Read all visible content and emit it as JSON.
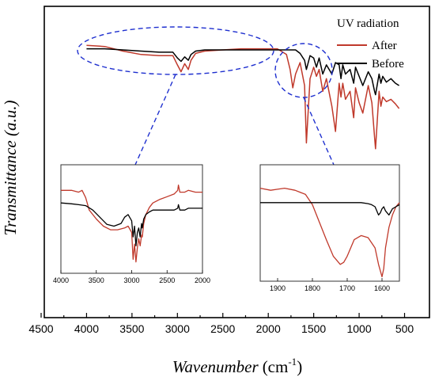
{
  "chart_data": {
    "type": "line",
    "title": "",
    "xlabel": "Wavenumber",
    "xlabel_unit": "(cm",
    "xlabel_unit_sup": "-1",
    "xlabel_unit_close": ")",
    "ylabel": "Transmittance (a.u.)",
    "xlim": [
      4500,
      400
    ],
    "x_ticks": [
      "4500",
      "4000",
      "3500",
      "3000",
      "2500",
      "2000",
      "1500",
      "1000",
      "500"
    ],
    "grid": false,
    "legend": {
      "title": "UV radiation",
      "placement": "top-right",
      "entries": [
        {
          "label": "After",
          "color": "#c0392b"
        },
        {
          "label": "Before",
          "color": "#000000"
        }
      ]
    },
    "series": [
      {
        "name": "After",
        "color": "#c0392b",
        "x": [
          4000,
          3800,
          3600,
          3400,
          3200,
          3050,
          3000,
          2960,
          2920,
          2880,
          2850,
          2800,
          2700,
          2500,
          2300,
          2100,
          1900,
          1800,
          1760,
          1730,
          1700,
          1650,
          1600,
          1580,
          1540,
          1500,
          1470,
          1440,
          1400,
          1360,
          1300,
          1260,
          1220,
          1200,
          1180,
          1150,
          1100,
          1060,
          1040,
          1000,
          960,
          900,
          860,
          830,
          820,
          780,
          760,
          740,
          700,
          650,
          600,
          560
        ],
        "y": [
          0.95,
          0.94,
          0.9,
          0.87,
          0.86,
          0.86,
          0.78,
          0.72,
          0.79,
          0.74,
          0.82,
          0.88,
          0.9,
          0.91,
          0.92,
          0.92,
          0.92,
          0.87,
          0.74,
          0.58,
          0.7,
          0.8,
          0.6,
          0.1,
          0.66,
          0.76,
          0.68,
          0.74,
          0.55,
          0.66,
          0.42,
          0.2,
          0.62,
          0.5,
          0.62,
          0.48,
          0.55,
          0.32,
          0.58,
          0.45,
          0.36,
          0.6,
          0.45,
          0.15,
          0.05,
          0.55,
          0.42,
          0.5,
          0.46,
          0.48,
          0.44,
          0.4
        ]
      },
      {
        "name": "Before",
        "color": "#000000",
        "x": [
          4000,
          3800,
          3600,
          3400,
          3200,
          3050,
          3000,
          2960,
          2920,
          2880,
          2850,
          2800,
          2700,
          2500,
          2300,
          2100,
          1900,
          1800,
          1760,
          1730,
          1700,
          1650,
          1600,
          1580,
          1540,
          1500,
          1470,
          1440,
          1400,
          1360,
          1300,
          1260,
          1220,
          1200,
          1180,
          1150,
          1100,
          1060,
          1040,
          1000,
          960,
          900,
          860,
          830,
          820,
          780,
          760,
          740,
          700,
          650,
          600,
          560
        ],
        "y": [
          0.92,
          0.92,
          0.91,
          0.9,
          0.89,
          0.89,
          0.84,
          0.81,
          0.85,
          0.82,
          0.87,
          0.9,
          0.91,
          0.91,
          0.91,
          0.91,
          0.91,
          0.91,
          0.91,
          0.91,
          0.91,
          0.88,
          0.82,
          0.74,
          0.86,
          0.84,
          0.76,
          0.84,
          0.7,
          0.78,
          0.7,
          0.8,
          0.78,
          0.66,
          0.78,
          0.7,
          0.74,
          0.62,
          0.76,
          0.68,
          0.6,
          0.72,
          0.66,
          0.55,
          0.52,
          0.7,
          0.62,
          0.68,
          0.63,
          0.66,
          0.62,
          0.6
        ]
      }
    ],
    "insets": [
      {
        "xlim": [
          4000,
          2000
        ],
        "x_ticks": [
          "4000",
          "3500",
          "3000",
          "2500",
          "2000"
        ],
        "series": [
          {
            "name": "After",
            "color": "#c0392b",
            "x": [
              4000,
              3850,
              3750,
              3700,
              3650,
              3600,
              3500,
              3400,
              3300,
              3200,
              3100,
              3050,
              3000,
              2980,
              2960,
              2940,
              2920,
              2900,
              2880,
              2860,
              2850,
              2830,
              2800,
              2750,
              2700,
              2600,
              2500,
              2400,
              2350,
              2340,
              2320,
              2250,
              2200,
              2100,
              2000
            ],
            "y": [
              0.82,
              0.82,
              0.8,
              0.82,
              0.74,
              0.6,
              0.5,
              0.42,
              0.38,
              0.38,
              0.4,
              0.42,
              0.35,
              0.05,
              0.22,
              0.02,
              0.18,
              0.28,
              0.2,
              0.32,
              0.3,
              0.45,
              0.55,
              0.63,
              0.68,
              0.72,
              0.75,
              0.78,
              0.82,
              0.88,
              0.8,
              0.8,
              0.82,
              0.8,
              0.8
            ]
          },
          {
            "name": "Before",
            "color": "#000000",
            "x": [
              4000,
              3850,
              3750,
              3650,
              3550,
              3450,
              3350,
              3250,
              3150,
              3100,
              3050,
              3000,
              2980,
              2960,
              2940,
              2920,
              2900,
              2880,
              2860,
              2850,
              2830,
              2800,
              2750,
              2700,
              2600,
              2500,
              2400,
              2350,
              2340,
              2320,
              2250,
              2200,
              2100,
              2000
            ],
            "y": [
              0.68,
              0.67,
              0.66,
              0.65,
              0.6,
              0.52,
              0.44,
              0.42,
              0.45,
              0.52,
              0.55,
              0.48,
              0.3,
              0.42,
              0.2,
              0.35,
              0.4,
              0.3,
              0.45,
              0.4,
              0.5,
              0.55,
              0.58,
              0.6,
              0.6,
              0.6,
              0.6,
              0.62,
              0.66,
              0.6,
              0.6,
              0.62,
              0.62,
              0.62
            ]
          }
        ]
      },
      {
        "xlim": [
          1950,
          1550
        ],
        "x_ticks": [
          "1900",
          "1800",
          "1700",
          "1600"
        ],
        "series": [
          {
            "name": "After",
            "color": "#c0392b",
            "x": [
              1950,
              1920,
              1900,
              1880,
              1850,
              1820,
              1800,
              1780,
              1760,
              1740,
              1720,
              1710,
              1700,
              1690,
              1680,
              1660,
              1640,
              1620,
              1610,
              1600,
              1595,
              1590,
              1580,
              1570,
              1560,
              1550
            ],
            "y": [
              0.88,
              0.86,
              0.87,
              0.88,
              0.86,
              0.82,
              0.72,
              0.55,
              0.38,
              0.22,
              0.14,
              0.16,
              0.22,
              0.3,
              0.38,
              0.42,
              0.4,
              0.3,
              0.14,
              0.02,
              0.1,
              0.3,
              0.5,
              0.62,
              0.7,
              0.74
            ]
          },
          {
            "name": "Before",
            "color": "#000000",
            "x": [
              1950,
              1900,
              1850,
              1800,
              1750,
              1700,
              1680,
              1660,
              1640,
              1630,
              1620,
              1610,
              1605,
              1600,
              1595,
              1590,
              1580,
              1570,
              1560,
              1550
            ],
            "y": [
              0.74,
              0.74,
              0.74,
              0.74,
              0.74,
              0.74,
              0.74,
              0.74,
              0.73,
              0.72,
              0.7,
              0.62,
              0.64,
              0.68,
              0.7,
              0.66,
              0.62,
              0.68,
              0.7,
              0.72
            ]
          }
        ]
      }
    ]
  }
}
